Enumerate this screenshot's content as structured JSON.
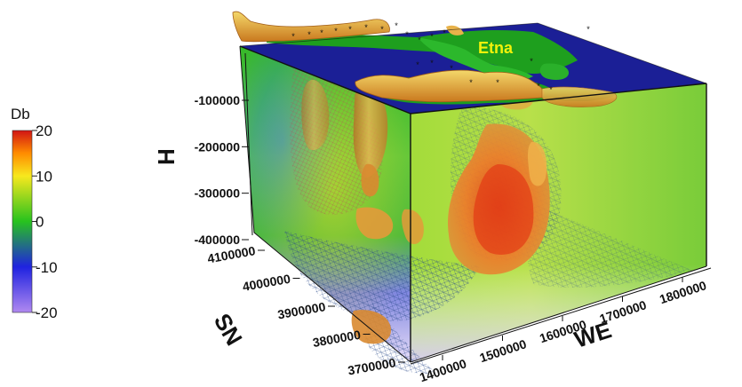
{
  "chart_data": {
    "type": "volume-3d",
    "title": "",
    "colorbar": {
      "label": "Db",
      "ticks": [
        20,
        10,
        0,
        -10,
        -20
      ],
      "tick_labels": [
        "20",
        "10",
        "0",
        "-10",
        "-20"
      ],
      "range": [
        -20,
        20
      ],
      "stops": [
        {
          "value": 20,
          "color": "#d11414"
        },
        {
          "value": 15,
          "color": "#ff8c00"
        },
        {
          "value": 10,
          "color": "#f7e81e"
        },
        {
          "value": 0,
          "color": "#27c21e"
        },
        {
          "value": -10,
          "color": "#1f22e0"
        },
        {
          "value": -20,
          "color": "#b089f0"
        }
      ]
    },
    "axes": {
      "H": {
        "label": "H",
        "ticks": [
          -100000,
          -200000,
          -300000,
          -400000
        ],
        "tick_labels": [
          "-100000",
          "-200000",
          "-300000",
          "-400000"
        ]
      },
      "SN": {
        "label": "SN",
        "ticks": [
          4100000,
          4000000,
          3900000,
          3800000,
          3700000
        ],
        "tick_labels": [
          "4100000",
          "4000000",
          "3900000",
          "3800000",
          "3700000"
        ]
      },
      "WE": {
        "label": "WE",
        "ticks": [
          1400000,
          1500000,
          1600000,
          1700000,
          1800000
        ],
        "tick_labels": [
          "1400000",
          "1500000",
          "1600000",
          "1700000",
          "1800000"
        ]
      }
    },
    "annotations": [
      {
        "text": "Etna",
        "color": "#f2f20a"
      }
    ]
  },
  "colors": {
    "sea": "#1b1f96",
    "land": "#1e9f1e",
    "iso_surface": "#e8a347",
    "iso_core": "#e84a18",
    "mesh": "#2a4a8a"
  }
}
